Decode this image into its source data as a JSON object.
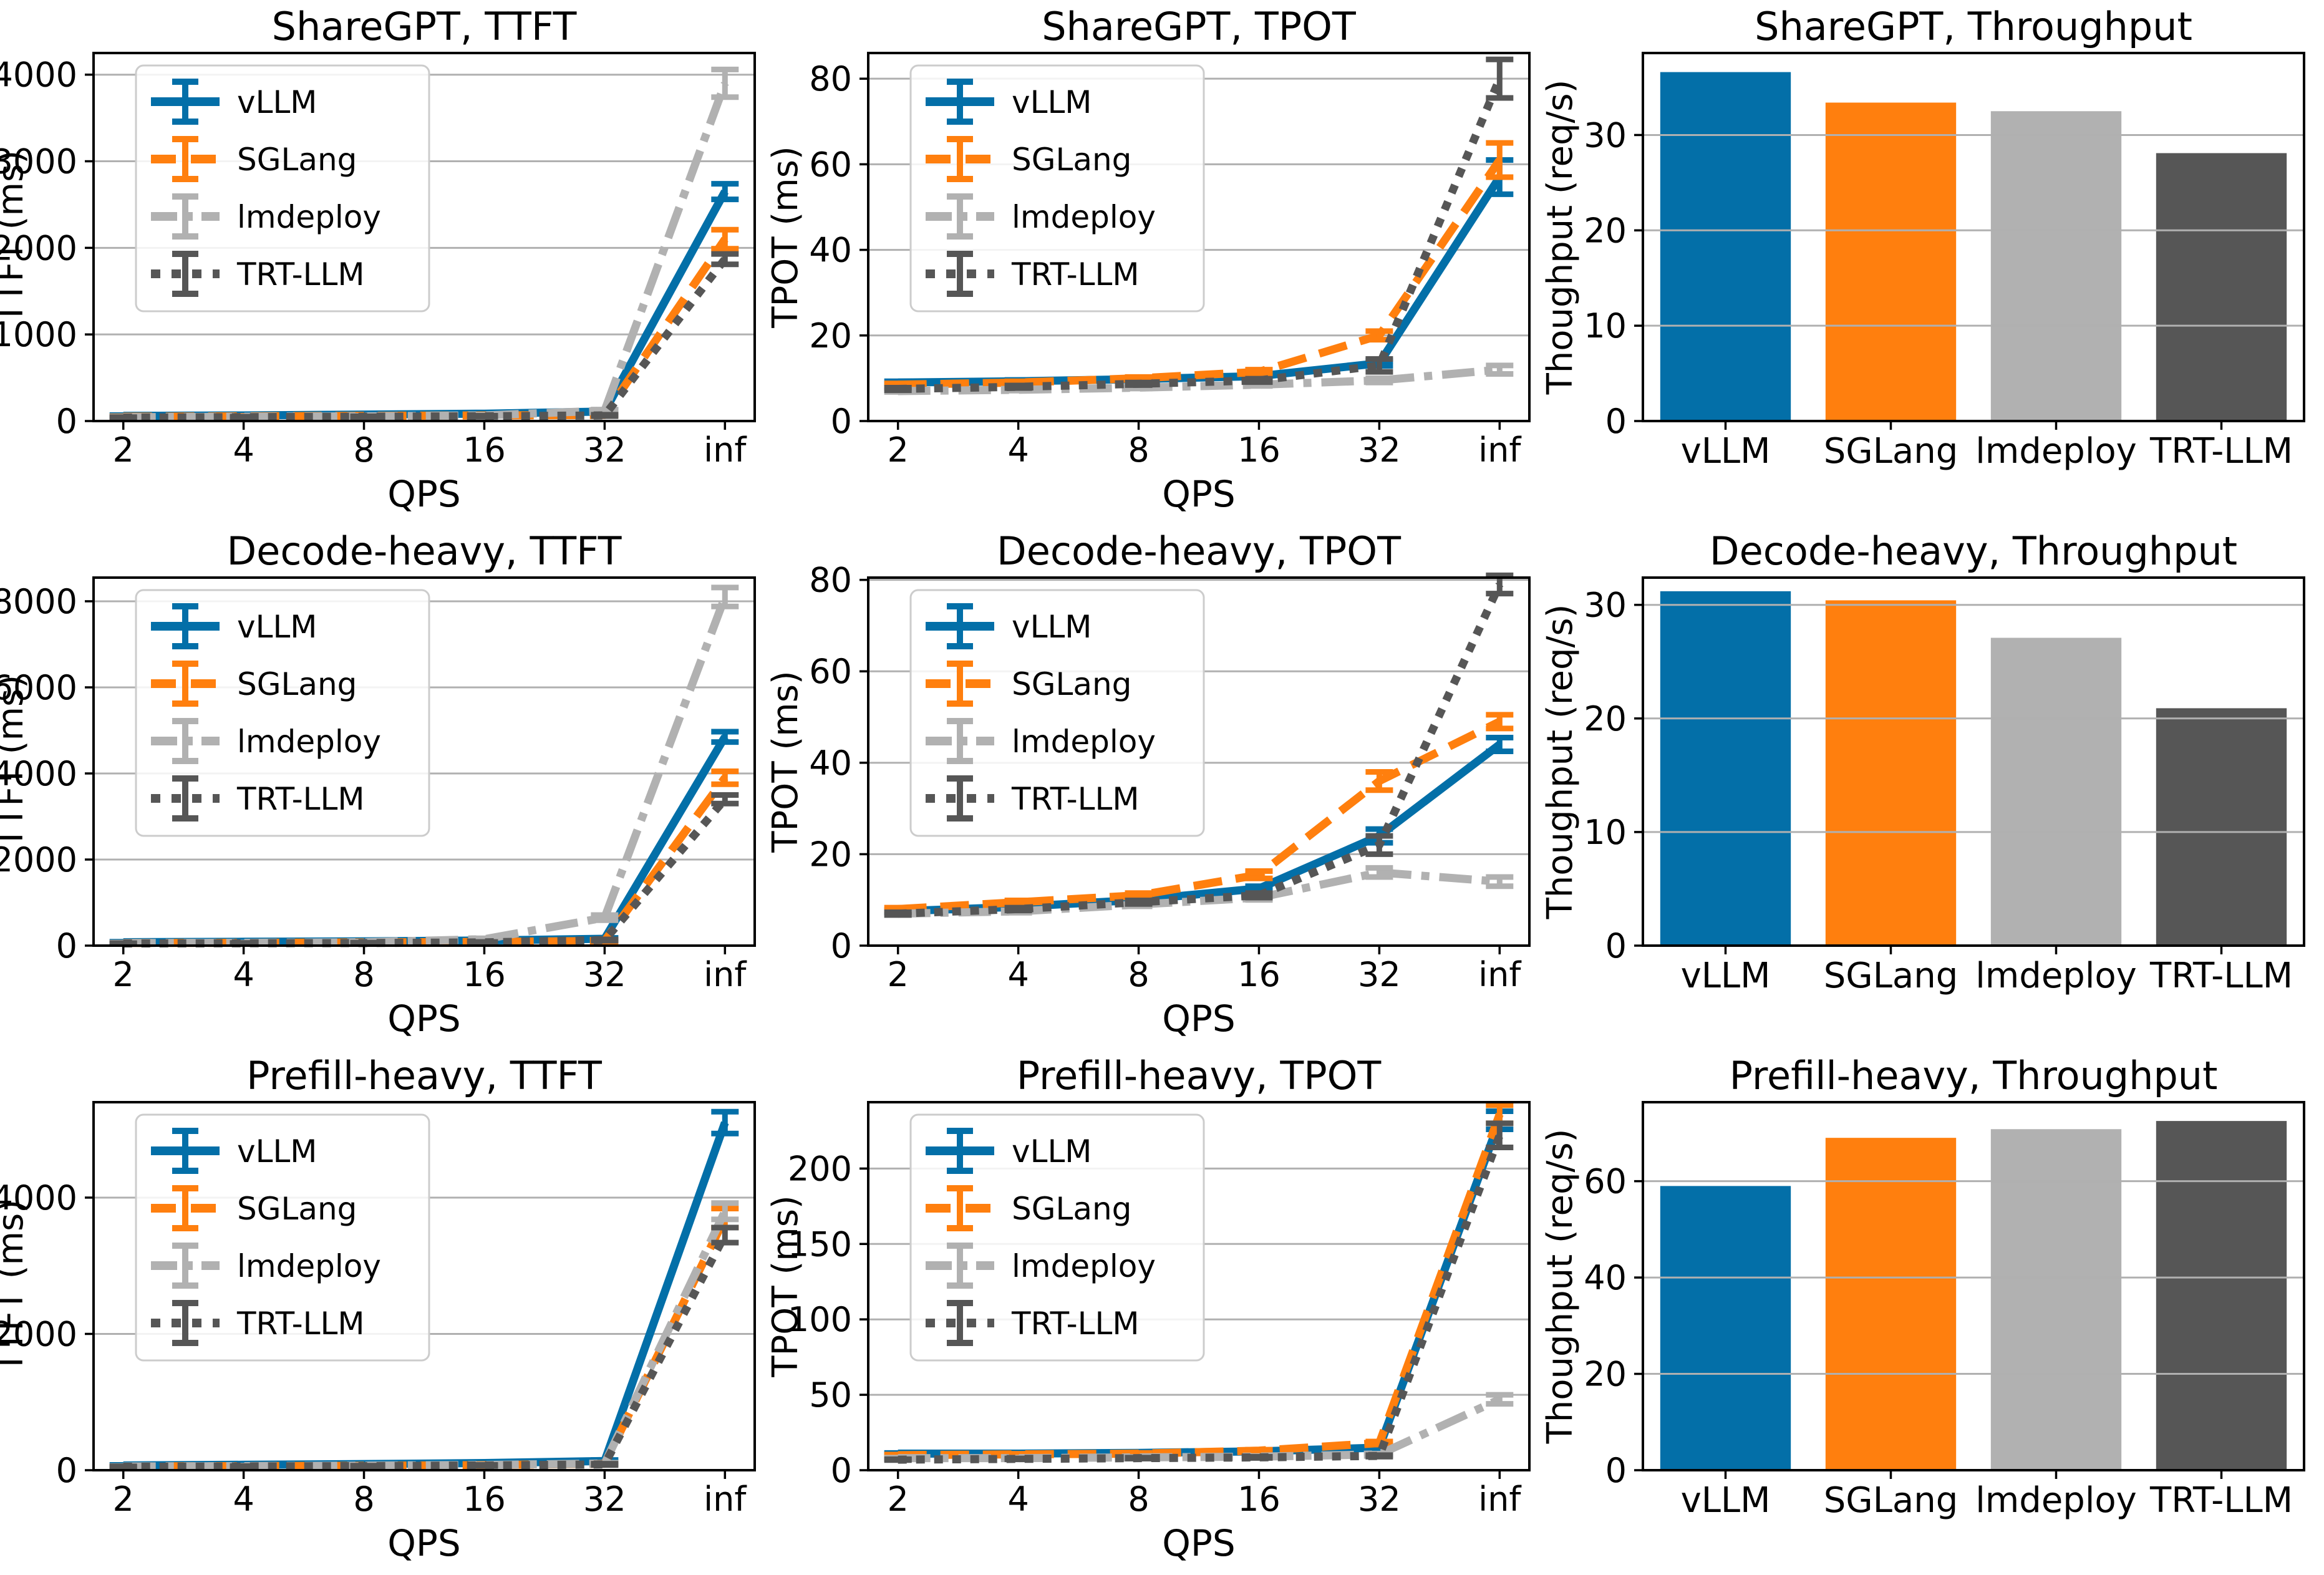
{
  "figure": {
    "rows": [
      "ShareGPT",
      "Decode-heavy",
      "Prefill-heavy"
    ],
    "metrics": [
      "TTFT",
      "TPOT",
      "Throughput"
    ],
    "frameworks": [
      "vLLM",
      "SGLang",
      "lmdeploy",
      "TRT-LLM"
    ]
  },
  "styles": {
    "background": "#ffffff",
    "text_color": "#000000",
    "grid_color": "#b0b0b0",
    "spine_color": "#000000",
    "legend_border": "#cccccc",
    "series": [
      {
        "name": "vLLM",
        "color": "#036fa8",
        "linestyle": "solid"
      },
      {
        "name": "SGLang",
        "color": "#ff7f0e",
        "linestyle": "dashed"
      },
      {
        "name": "lmdeploy",
        "color": "#b1b1b1",
        "linestyle": "dashdot"
      },
      {
        "name": "TRT-LLM",
        "color": "#565656",
        "linestyle": "dotted"
      }
    ]
  },
  "chart_data": [
    {
      "type": "line",
      "title": "ShareGPT, TTFT",
      "xlabel": "QPS",
      "ylabel": "TTFT (ms)",
      "x_ticklabels": [
        "2",
        "4",
        "8",
        "16",
        "32",
        "inf"
      ],
      "yticks": [
        0,
        1000,
        2000,
        3000,
        4000
      ],
      "ylim": [
        0,
        4250
      ],
      "grid": true,
      "legend": true,
      "legend_position": "upper-left",
      "series": [
        {
          "name": "vLLM",
          "values": [
            60,
            65,
            75,
            85,
            110,
            2650
          ],
          "errors": [
            8,
            8,
            8,
            10,
            15,
            90
          ]
        },
        {
          "name": "SGLang",
          "values": [
            50,
            55,
            60,
            65,
            70,
            2100
          ],
          "errors": [
            6,
            6,
            6,
            8,
            10,
            110
          ]
        },
        {
          "name": "lmdeploy",
          "values": [
            45,
            50,
            55,
            65,
            120,
            3900
          ],
          "errors": [
            6,
            6,
            6,
            8,
            12,
            160
          ]
        },
        {
          "name": "TRT-LLM",
          "values": [
            40,
            45,
            50,
            55,
            65,
            1870
          ],
          "errors": [
            5,
            5,
            5,
            6,
            8,
            60
          ]
        }
      ]
    },
    {
      "type": "line",
      "title": "ShareGPT, TPOT",
      "xlabel": "QPS",
      "ylabel": "TPOT (ms)",
      "x_ticklabels": [
        "2",
        "4",
        "8",
        "16",
        "32",
        "inf"
      ],
      "yticks": [
        0,
        20,
        40,
        60,
        80
      ],
      "ylim": [
        0,
        86
      ],
      "grid": true,
      "legend": true,
      "legend_position": "upper-left",
      "series": [
        {
          "name": "vLLM",
          "values": [
            9,
            9.3,
            9.8,
            10.5,
            13.5,
            57
          ],
          "errors": [
            0.3,
            0.3,
            0.3,
            0.4,
            0.6,
            4
          ]
        },
        {
          "name": "SGLang",
          "values": [
            8.5,
            9,
            10,
            11.5,
            20,
            61
          ],
          "errors": [
            0.3,
            0.3,
            0.3,
            0.5,
            1,
            4
          ]
        },
        {
          "name": "lmdeploy",
          "values": [
            7,
            7.3,
            7.8,
            8.5,
            9.5,
            12
          ],
          "errors": [
            0.2,
            0.2,
            0.2,
            0.3,
            0.5,
            1
          ]
        },
        {
          "name": "TRT-LLM",
          "values": [
            7.5,
            8,
            8.7,
            9.5,
            13,
            80
          ],
          "errors": [
            0.3,
            0.3,
            0.3,
            0.4,
            1.5,
            4.5
          ]
        }
      ]
    },
    {
      "type": "bar",
      "title": "ShareGPT, Throughput",
      "xlabel": "",
      "ylabel": "Thoughput (req/s)",
      "categories": [
        "vLLM",
        "SGLang",
        "lmdeploy",
        "TRT-LLM"
      ],
      "values": [
        36.6,
        33.4,
        32.5,
        28.1
      ],
      "yticks": [
        0,
        10,
        20,
        30
      ],
      "ylim": [
        0,
        38.6
      ],
      "grid": true,
      "legend": false
    },
    {
      "type": "line",
      "title": "Decode-heavy, TTFT",
      "xlabel": "QPS",
      "ylabel": "TTFT (ms)",
      "x_ticklabels": [
        "2",
        "4",
        "8",
        "16",
        "32",
        "inf"
      ],
      "yticks": [
        0,
        2000,
        4000,
        6000,
        8000
      ],
      "ylim": [
        0,
        8550
      ],
      "grid": true,
      "legend": true,
      "legend_position": "upper-left",
      "series": [
        {
          "name": "vLLM",
          "values": [
            80,
            90,
            100,
            120,
            160,
            4850
          ],
          "errors": [
            10,
            10,
            10,
            12,
            20,
            120
          ]
        },
        {
          "name": "SGLang",
          "values": [
            60,
            65,
            75,
            85,
            110,
            3900
          ],
          "errors": [
            8,
            8,
            8,
            10,
            15,
            150
          ]
        },
        {
          "name": "lmdeploy",
          "values": [
            60,
            65,
            80,
            150,
            650,
            8100
          ],
          "errors": [
            8,
            8,
            10,
            20,
            60,
            220
          ]
        },
        {
          "name": "TRT-LLM",
          "values": [
            50,
            55,
            60,
            75,
            130,
            3400
          ],
          "errors": [
            6,
            6,
            8,
            10,
            15,
            100
          ]
        }
      ]
    },
    {
      "type": "line",
      "title": "Decode-heavy, TPOT",
      "xlabel": "QPS",
      "ylabel": "TPOT (ms)",
      "x_ticklabels": [
        "2",
        "4",
        "8",
        "16",
        "32",
        "inf"
      ],
      "yticks": [
        0,
        20,
        40,
        60,
        80
      ],
      "ylim": [
        0,
        80.5
      ],
      "grid": true,
      "legend": true,
      "legend_position": "upper-left",
      "series": [
        {
          "name": "vLLM",
          "values": [
            7.5,
            8.5,
            10,
            12.5,
            24,
            44
          ],
          "errors": [
            0.3,
            0.3,
            0.4,
            0.5,
            1.5,
            1.5
          ]
        },
        {
          "name": "SGLang",
          "values": [
            8,
            9.5,
            11,
            15.5,
            36,
            49
          ],
          "errors": [
            0.3,
            0.4,
            0.5,
            0.8,
            2,
            1.5
          ]
        },
        {
          "name": "lmdeploy",
          "values": [
            7,
            7.5,
            9,
            10.5,
            16,
            14
          ],
          "errors": [
            0.3,
            0.3,
            0.4,
            0.5,
            1,
            1
          ]
        },
        {
          "name": "TRT-LLM",
          "values": [
            7,
            8,
            9.5,
            11,
            22,
            79
          ],
          "errors": [
            0.3,
            0.3,
            0.4,
            0.5,
            2,
            2
          ]
        }
      ]
    },
    {
      "type": "bar",
      "title": "Decode-heavy, Throughput",
      "xlabel": "",
      "ylabel": "Thoughput (req/s)",
      "categories": [
        "vLLM",
        "SGLang",
        "lmdeploy",
        "TRT-LLM"
      ],
      "values": [
        31.2,
        30.4,
        27.1,
        20.9
      ],
      "yticks": [
        0,
        10,
        20,
        30
      ],
      "ylim": [
        0,
        32.4
      ],
      "grid": true,
      "legend": false
    },
    {
      "type": "line",
      "title": "Prefill-heavy, TTFT",
      "xlabel": "QPS",
      "ylabel": "TTFT (ms)",
      "x_ticklabels": [
        "2",
        "4",
        "8",
        "16",
        "32",
        "inf"
      ],
      "yticks": [
        0,
        2000,
        4000
      ],
      "ylim": [
        0,
        5400
      ],
      "grid": true,
      "legend": true,
      "legend_position": "upper-left",
      "series": [
        {
          "name": "vLLM",
          "values": [
            70,
            80,
            90,
            105,
            135,
            5100
          ],
          "errors": [
            8,
            8,
            8,
            10,
            15,
            160
          ]
        },
        {
          "name": "SGLang",
          "values": [
            55,
            60,
            65,
            75,
            95,
            3700
          ],
          "errors": [
            6,
            6,
            8,
            8,
            12,
            140
          ]
        },
        {
          "name": "lmdeploy",
          "values": [
            55,
            60,
            68,
            78,
            98,
            3800
          ],
          "errors": [
            6,
            6,
            8,
            8,
            12,
            120
          ]
        },
        {
          "name": "TRT-LLM",
          "values": [
            50,
            55,
            60,
            70,
            85,
            3450
          ],
          "errors": [
            6,
            6,
            6,
            8,
            10,
            110
          ]
        }
      ]
    },
    {
      "type": "line",
      "title": "Prefill-heavy, TPOT",
      "xlabel": "QPS",
      "ylabel": "TPOT (ms)",
      "x_ticklabels": [
        "2",
        "4",
        "8",
        "16",
        "32",
        "inf"
      ],
      "yticks": [
        0,
        50,
        100,
        150,
        200
      ],
      "ylim": [
        0,
        244
      ],
      "grid": true,
      "legend": true,
      "legend_position": "upper-left",
      "series": [
        {
          "name": "vLLM",
          "values": [
            11,
            11,
            11.5,
            12.5,
            15,
            232
          ],
          "errors": [
            0.4,
            0.4,
            0.4,
            0.5,
            0.8,
            6
          ]
        },
        {
          "name": "SGLang",
          "values": [
            10,
            10.5,
            11,
            13,
            18,
            236
          ],
          "errors": [
            0.4,
            0.4,
            0.5,
            0.6,
            1,
            6
          ]
        },
        {
          "name": "lmdeploy",
          "values": [
            8,
            8,
            8.5,
            9,
            10.5,
            47
          ],
          "errors": [
            0.3,
            0.3,
            0.3,
            0.4,
            0.5,
            3
          ]
        },
        {
          "name": "TRT-LLM",
          "values": [
            7,
            7.5,
            8,
            8.5,
            9.5,
            222
          ],
          "errors": [
            0.3,
            0.3,
            0.3,
            0.4,
            0.5,
            8
          ]
        }
      ]
    },
    {
      "type": "bar",
      "title": "Prefill-heavy, Throughput",
      "xlabel": "",
      "ylabel": "Thoughput (req/s)",
      "categories": [
        "vLLM",
        "SGLang",
        "lmdeploy",
        "TRT-LLM"
      ],
      "values": [
        59,
        69,
        70.8,
        72.5
      ],
      "yticks": [
        0,
        20,
        40,
        60
      ],
      "ylim": [
        0,
        76.4
      ],
      "grid": true,
      "legend": false
    }
  ]
}
